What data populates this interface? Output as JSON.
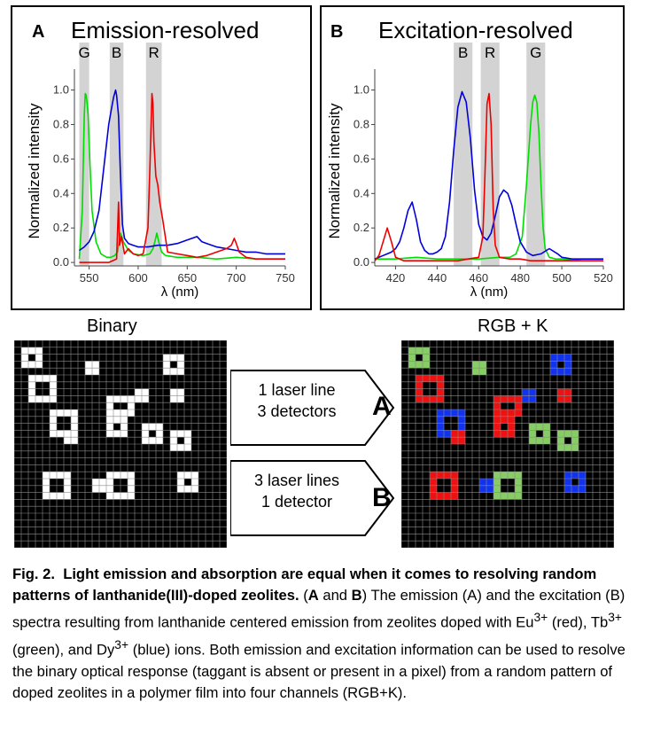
{
  "panels": {
    "A": {
      "letter": "A",
      "title": "Emission-resolved",
      "xlabel": "λ (nm)",
      "ylabel": "Normalized intensity",
      "band_labels": [
        "G",
        "B",
        "R"
      ]
    },
    "B": {
      "letter": "B",
      "title": "Excitation-resolved",
      "xlabel": "λ (nm)",
      "ylabel": "Normalized intensity",
      "band_labels": [
        "B",
        "R",
        "G"
      ]
    }
  },
  "chart_data": [
    {
      "type": "line",
      "title": "Emission-resolved",
      "xlabel": "λ (nm)",
      "ylabel": "Normalized intensity",
      "xlim": [
        535,
        750
      ],
      "ylim": [
        -0.02,
        1.08
      ],
      "xticks": [
        550,
        600,
        650,
        700,
        750
      ],
      "yticks": [
        0.0,
        0.2,
        0.4,
        0.6,
        0.8,
        1.0
      ],
      "bands": [
        {
          "label": "G",
          "from": 540,
          "to": 550
        },
        {
          "label": "B",
          "from": 571,
          "to": 585
        },
        {
          "label": "R",
          "from": 608,
          "to": 624
        }
      ],
      "series": [
        {
          "color": "#00dd00",
          "x": [
            540,
            543,
            545,
            546,
            547,
            548,
            549,
            551,
            553,
            557,
            562,
            568,
            572,
            576,
            579,
            582,
            585,
            590,
            595,
            605,
            612,
            615,
            617,
            619,
            621,
            624,
            628,
            640,
            660,
            680,
            700,
            720,
            750
          ],
          "y": [
            0.02,
            0.3,
            0.85,
            0.98,
            0.97,
            0.92,
            0.85,
            0.55,
            0.3,
            0.12,
            0.05,
            0.03,
            0.03,
            0.04,
            0.06,
            0.17,
            0.12,
            0.07,
            0.05,
            0.04,
            0.05,
            0.08,
            0.12,
            0.17,
            0.12,
            0.06,
            0.04,
            0.03,
            0.03,
            0.02,
            0.03,
            0.02,
            0.02
          ]
        },
        {
          "color": "#0000dd",
          "x": [
            540,
            545,
            550,
            555,
            560,
            565,
            570,
            573,
            575,
            577,
            578,
            580,
            582,
            584,
            586,
            590,
            595,
            600,
            610,
            620,
            630,
            640,
            650,
            660,
            665,
            670,
            680,
            690,
            700,
            710,
            720,
            730,
            740,
            750
          ],
          "y": [
            0.07,
            0.09,
            0.12,
            0.18,
            0.3,
            0.55,
            0.8,
            0.9,
            0.96,
            1.0,
            0.97,
            0.85,
            0.5,
            0.22,
            0.14,
            0.11,
            0.1,
            0.09,
            0.09,
            0.1,
            0.1,
            0.11,
            0.13,
            0.15,
            0.12,
            0.11,
            0.09,
            0.08,
            0.07,
            0.06,
            0.06,
            0.05,
            0.05,
            0.05
          ]
        },
        {
          "color": "#ee0000",
          "x": [
            540,
            570,
            578,
            580,
            581,
            583,
            586,
            590,
            595,
            600,
            605,
            610,
            612,
            614,
            615,
            616,
            618,
            620,
            622,
            625,
            630,
            640,
            650,
            660,
            670,
            680,
            690,
            695,
            698,
            700,
            703,
            710,
            720,
            750
          ],
          "y": [
            0.0,
            0.0,
            0.02,
            0.35,
            0.1,
            0.15,
            0.05,
            0.08,
            0.05,
            0.04,
            0.05,
            0.2,
            0.55,
            0.98,
            0.92,
            0.7,
            0.5,
            0.45,
            0.35,
            0.25,
            0.06,
            0.05,
            0.04,
            0.03,
            0.04,
            0.06,
            0.08,
            0.1,
            0.14,
            0.11,
            0.06,
            0.03,
            0.02,
            0.02
          ]
        }
      ]
    },
    {
      "type": "line",
      "title": "Excitation-resolved",
      "xlabel": "λ (nm)",
      "ylabel": "Normalized intensity",
      "xlim": [
        410,
        520
      ],
      "ylim": [
        -0.02,
        1.08
      ],
      "xticks": [
        420,
        440,
        460,
        480,
        500,
        520
      ],
      "yticks": [
        0.0,
        0.2,
        0.4,
        0.6,
        0.8,
        1.0
      ],
      "bands": [
        {
          "label": "B",
          "from": 448,
          "to": 457
        },
        {
          "label": "R",
          "from": 461,
          "to": 470
        },
        {
          "label": "G",
          "from": 483,
          "to": 492
        }
      ],
      "series": [
        {
          "color": "#00dd00",
          "x": [
            410,
            420,
            430,
            440,
            450,
            460,
            470,
            475,
            478,
            481,
            483,
            485,
            486,
            487,
            488,
            489,
            490,
            491,
            492,
            494,
            497,
            500,
            510,
            520
          ],
          "y": [
            0.02,
            0.02,
            0.03,
            0.02,
            0.02,
            0.02,
            0.03,
            0.03,
            0.05,
            0.15,
            0.45,
            0.8,
            0.93,
            0.97,
            0.93,
            0.75,
            0.45,
            0.2,
            0.08,
            0.03,
            0.02,
            0.02,
            0.01,
            0.01
          ]
        },
        {
          "color": "#0000dd",
          "x": [
            410,
            412,
            414,
            416,
            418,
            420,
            422,
            424,
            426,
            428,
            430,
            432,
            434,
            436,
            438,
            440,
            442,
            444,
            446,
            448,
            450,
            452,
            454,
            456,
            458,
            460,
            462,
            464,
            466,
            468,
            470,
            472,
            474,
            476,
            478,
            480,
            483,
            486,
            490,
            494,
            498,
            500,
            505,
            510,
            515,
            520
          ],
          "y": [
            0.02,
            0.03,
            0.04,
            0.05,
            0.06,
            0.08,
            0.12,
            0.2,
            0.3,
            0.35,
            0.25,
            0.12,
            0.07,
            0.05,
            0.05,
            0.06,
            0.08,
            0.15,
            0.35,
            0.65,
            0.9,
            0.99,
            0.93,
            0.72,
            0.42,
            0.22,
            0.15,
            0.13,
            0.17,
            0.27,
            0.38,
            0.42,
            0.4,
            0.33,
            0.22,
            0.12,
            0.06,
            0.04,
            0.05,
            0.08,
            0.05,
            0.03,
            0.02,
            0.02,
            0.02,
            0.02
          ]
        },
        {
          "color": "#ee0000",
          "x": [
            410,
            412,
            414,
            416,
            418,
            420,
            424,
            430,
            440,
            450,
            455,
            460,
            462,
            463,
            464,
            465,
            466,
            467,
            468,
            470,
            475,
            480,
            485,
            490,
            500,
            510,
            520
          ],
          "y": [
            0.01,
            0.04,
            0.12,
            0.2,
            0.12,
            0.03,
            0.01,
            0.01,
            0.01,
            0.01,
            0.02,
            0.03,
            0.15,
            0.5,
            0.92,
            0.98,
            0.8,
            0.3,
            0.1,
            0.03,
            0.02,
            0.02,
            0.01,
            0.01,
            0.01,
            0.01,
            0.01
          ]
        }
      ]
    }
  ],
  "diagram": {
    "binary_label": "Binary",
    "rgbk_label": "RGB + K",
    "arrow_a": {
      "line1": "1 laser line",
      "line2": "3 detectors",
      "letter": "A"
    },
    "arrow_b": {
      "line1": "3 laser lines",
      "line2": "1 detector",
      "letter": "B"
    },
    "colors": {
      "white": "#ffffff",
      "red": "#ee1111",
      "green": "#88cc66",
      "blue": "#1133ee"
    }
  },
  "caption": {
    "fig_label": "Fig. 2.",
    "bold_title": "Light emission and absorption are equal when it comes to resolving random patterns of lanthanide(III)-doped zeolites.",
    "p1": " (",
    "a": "A",
    "and": " and ",
    "b": "B",
    "p2": ") The emission (A) and the excitation (B) spectra resulting from lanthanide centered emission from zeolites doped with Eu",
    "sup1": "3+",
    "p3": " (red), Tb",
    "sup2": "3+",
    "p4": " (green), and Dy",
    "sup3": "3+",
    "p5": " (blue) ions. Both emission and excitation information can be used to resolve the binary optical response (taggant is absent or present in a pixel) from a random pattern of doped zeolites in a polymer film into four channels (RGB+K)."
  }
}
